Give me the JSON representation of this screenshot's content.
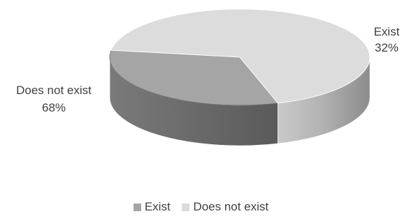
{
  "chart_data": {
    "type": "pie",
    "style": "3d",
    "title": "",
    "categories": [
      "Exist",
      "Does not exist"
    ],
    "values": [
      32,
      68
    ],
    "labels": [
      "32%",
      "68%"
    ],
    "colors": [
      "#a5a5a5",
      "#dcdcdc"
    ],
    "legend": {
      "position": "bottom",
      "entries": [
        "Exist",
        "Does not exist"
      ]
    }
  }
}
